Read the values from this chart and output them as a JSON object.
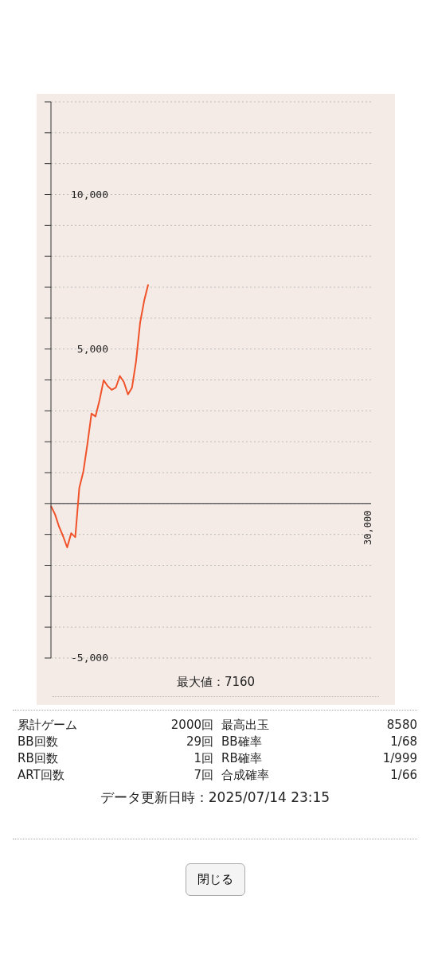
{
  "chart_data": {
    "type": "line",
    "categories": [
      null,
      null,
      null,
      null,
      null,
      null,
      null,
      null,
      null,
      null,
      null,
      null,
      null,
      null,
      null,
      null,
      null,
      null,
      null,
      null,
      null,
      null,
      null,
      null,
      null,
      null,
      null,
      null,
      null,
      null,
      null,
      null,
      null,
      null,
      null,
      null,
      null,
      null,
      null,
      null,
      null,
      null,
      null,
      null,
      null,
      null,
      null,
      null,
      null,
      null,
      null,
      null,
      null,
      null,
      null,
      null,
      null,
      null,
      null,
      null,
      null,
      null,
      null,
      null,
      null,
      null,
      null,
      null,
      null,
      null,
      null,
      null,
      null,
      null,
      null,
      null,
      null,
      null,
      null,
      null
    ],
    "series": [
      {
        "color": "#f0522a",
        "values": [
          -80,
          -350,
          -750,
          -1060,
          -1420,
          -960,
          -1090,
          510,
          1040,
          1930,
          2910,
          2820,
          3350,
          3990,
          3800,
          3680,
          3750,
          4130,
          3930,
          3530,
          3750,
          4600,
          5850,
          6560,
          7090,
          null,
          null,
          null,
          null,
          null,
          null,
          null,
          null,
          null,
          null,
          null,
          null,
          null,
          null,
          null,
          null,
          null,
          null,
          null,
          null,
          null,
          null,
          null,
          null,
          null,
          null,
          null,
          null,
          null,
          null,
          null,
          null,
          null,
          null,
          null,
          null,
          null,
          null,
          null,
          null,
          null,
          null,
          null,
          null,
          null,
          null,
          null,
          null,
          null,
          null,
          null,
          null,
          null,
          null,
          null
        ]
      }
    ],
    "ylim": [
      -5000,
      13000
    ],
    "yticks": [
      {
        "value": -5000,
        "label": "-5,000"
      },
      {
        "value": -4000,
        "label": null
      },
      {
        "value": -3000,
        "label": null
      },
      {
        "value": -2000,
        "label": null
      },
      {
        "value": -1000,
        "label": null
      },
      {
        "value": 0,
        "label": null
      },
      {
        "value": 1000,
        "label": null
      },
      {
        "value": 2000,
        "label": null
      },
      {
        "value": 3000,
        "label": null
      },
      {
        "value": 4000,
        "label": null
      },
      {
        "value": 5000,
        "label": "5,000"
      },
      {
        "value": 6000,
        "label": null
      },
      {
        "value": 7000,
        "label": null
      },
      {
        "value": 8000,
        "label": null
      },
      {
        "value": 9000,
        "label": null
      },
      {
        "value": 10000,
        "label": "10,000"
      },
      {
        "value": 11000,
        "label": null
      },
      {
        "value": 12000,
        "label": null
      },
      {
        "value": 13000,
        "label": null
      }
    ],
    "grid": "y",
    "marker": "none",
    "line_style": "solid",
    "legend": false,
    "ref_lines": [
      {
        "axis": "y",
        "value": 0,
        "color": "#666666"
      }
    ],
    "annotations": [
      "最大値：7160",
      "累計ゲーム",
      "2000回",
      "最高出玉",
      "8580",
      "BB回数",
      "29回",
      "BB確率",
      "1/68",
      "RB回数",
      "1回",
      "RB確率",
      "1/999",
      "ART回数",
      "7回",
      "合成確率",
      "1/66",
      "データ更新日時：2025/07/14 23:15",
      "閉じる",
      "30,000"
    ]
  }
}
